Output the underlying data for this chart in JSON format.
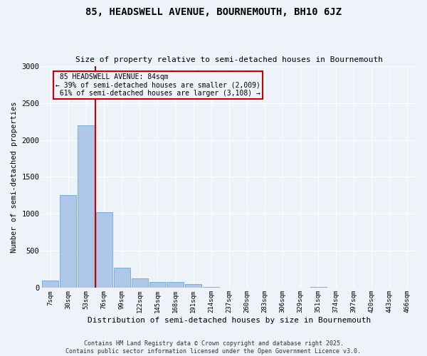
{
  "title": "85, HEADSWELL AVENUE, BOURNEMOUTH, BH10 6JZ",
  "subtitle": "Size of property relative to semi-detached houses in Bournemouth",
  "xlabel": "Distribution of semi-detached houses by size in Bournemouth",
  "ylabel": "Number of semi-detached properties",
  "footer_line1": "Contains HM Land Registry data © Crown copyright and database right 2025.",
  "footer_line2": "Contains public sector information licensed under the Open Government Licence v3.0.",
  "property_label": "85 HEADSWELL AVENUE: 84sqm",
  "smaller_pct": "39%",
  "smaller_count": "2,009",
  "larger_pct": "61%",
  "larger_count": "3,108",
  "property_size_sqm": 84,
  "bin_labels": [
    "7sqm",
    "30sqm",
    "53sqm",
    "76sqm",
    "99sqm",
    "122sqm",
    "145sqm",
    "168sqm",
    "191sqm",
    "214sqm",
    "237sqm",
    "260sqm",
    "283sqm",
    "306sqm",
    "329sqm",
    "351sqm",
    "374sqm",
    "397sqm",
    "420sqm",
    "443sqm",
    "466sqm"
  ],
  "bin_values": [
    100,
    1250,
    2200,
    1020,
    270,
    130,
    85,
    80,
    50,
    10,
    0,
    0,
    0,
    0,
    0,
    10,
    0,
    0,
    0,
    0,
    0
  ],
  "bar_color": "#aec6e8",
  "bar_edge_color": "#6aaad4",
  "vline_color": "#cc0000",
  "annotation_box_color": "#cc0000",
  "background_color": "#eef2f9",
  "ylim": [
    0,
    3000
  ],
  "yticks": [
    0,
    500,
    1000,
    1500,
    2000,
    2500,
    3000
  ],
  "property_bin_index": 2.5
}
